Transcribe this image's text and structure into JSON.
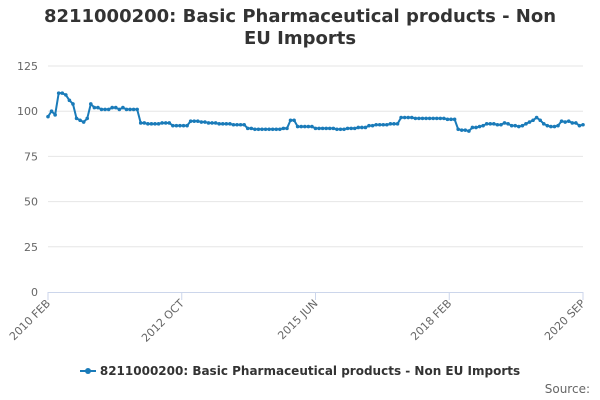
{
  "chart_data": {
    "type": "line",
    "title": "8211000200: Basic Pharmaceutical products - Non EU Imports",
    "xlabel": "",
    "ylabel": "",
    "x_start": "2010 FEB",
    "x_end": "2020 SEP",
    "x_tick_labels": [
      "2010 FEB",
      "2012 OCT",
      "2015 JUN",
      "2018 FEB",
      "2020 SEP"
    ],
    "y_ticks": [
      0,
      25,
      50,
      75,
      100,
      125
    ],
    "ylim": [
      0,
      125
    ],
    "grid": true,
    "legend_position": "bottom",
    "series": [
      {
        "name": "8211000200: Basic Pharmaceutical products - Non EU Imports",
        "color": "#1a7bb9",
        "values": [
          97,
          100,
          98,
          110,
          110,
          109,
          106,
          104,
          96,
          95,
          94,
          96,
          104,
          102,
          102,
          101,
          101,
          101,
          102,
          102,
          101,
          102,
          101,
          101,
          101,
          101,
          93.5,
          93.5,
          93,
          93,
          93,
          93,
          93.5,
          93.5,
          93.5,
          92,
          92,
          92,
          92,
          92,
          94.5,
          94.5,
          94.5,
          94,
          94,
          93.5,
          93.5,
          93.5,
          93,
          93,
          93,
          93,
          92.5,
          92.5,
          92.5,
          92.5,
          90.5,
          90.5,
          90,
          90,
          90,
          90,
          90,
          90,
          90,
          90,
          90.5,
          90.5,
          95,
          95,
          91.5,
          91.5,
          91.5,
          91.5,
          91.5,
          90.5,
          90.5,
          90.5,
          90.5,
          90.5,
          90.5,
          90,
          90,
          90,
          90.5,
          90.5,
          90.5,
          91,
          91,
          91,
          92,
          92,
          92.5,
          92.5,
          92.5,
          92.5,
          93,
          93,
          93,
          96.5,
          96.5,
          96.5,
          96.5,
          96,
          96,
          96,
          96,
          96,
          96,
          96,
          96,
          96,
          95.5,
          95.5,
          95.5,
          90,
          89.5,
          89.5,
          89,
          91,
          91,
          91.5,
          92,
          93,
          93,
          93,
          92.5,
          92.5,
          93.5,
          93,
          92,
          92,
          91.5,
          92,
          93,
          94,
          95,
          96.5,
          95,
          93,
          92,
          91.5,
          91.5,
          92,
          94.5,
          94,
          94.5,
          93.5,
          93.5,
          92,
          92.5
        ]
      }
    ]
  },
  "legend": {
    "label": "8211000200: Basic Pharmaceutical products - Non EU Imports"
  },
  "credits": {
    "label": "Source:"
  }
}
